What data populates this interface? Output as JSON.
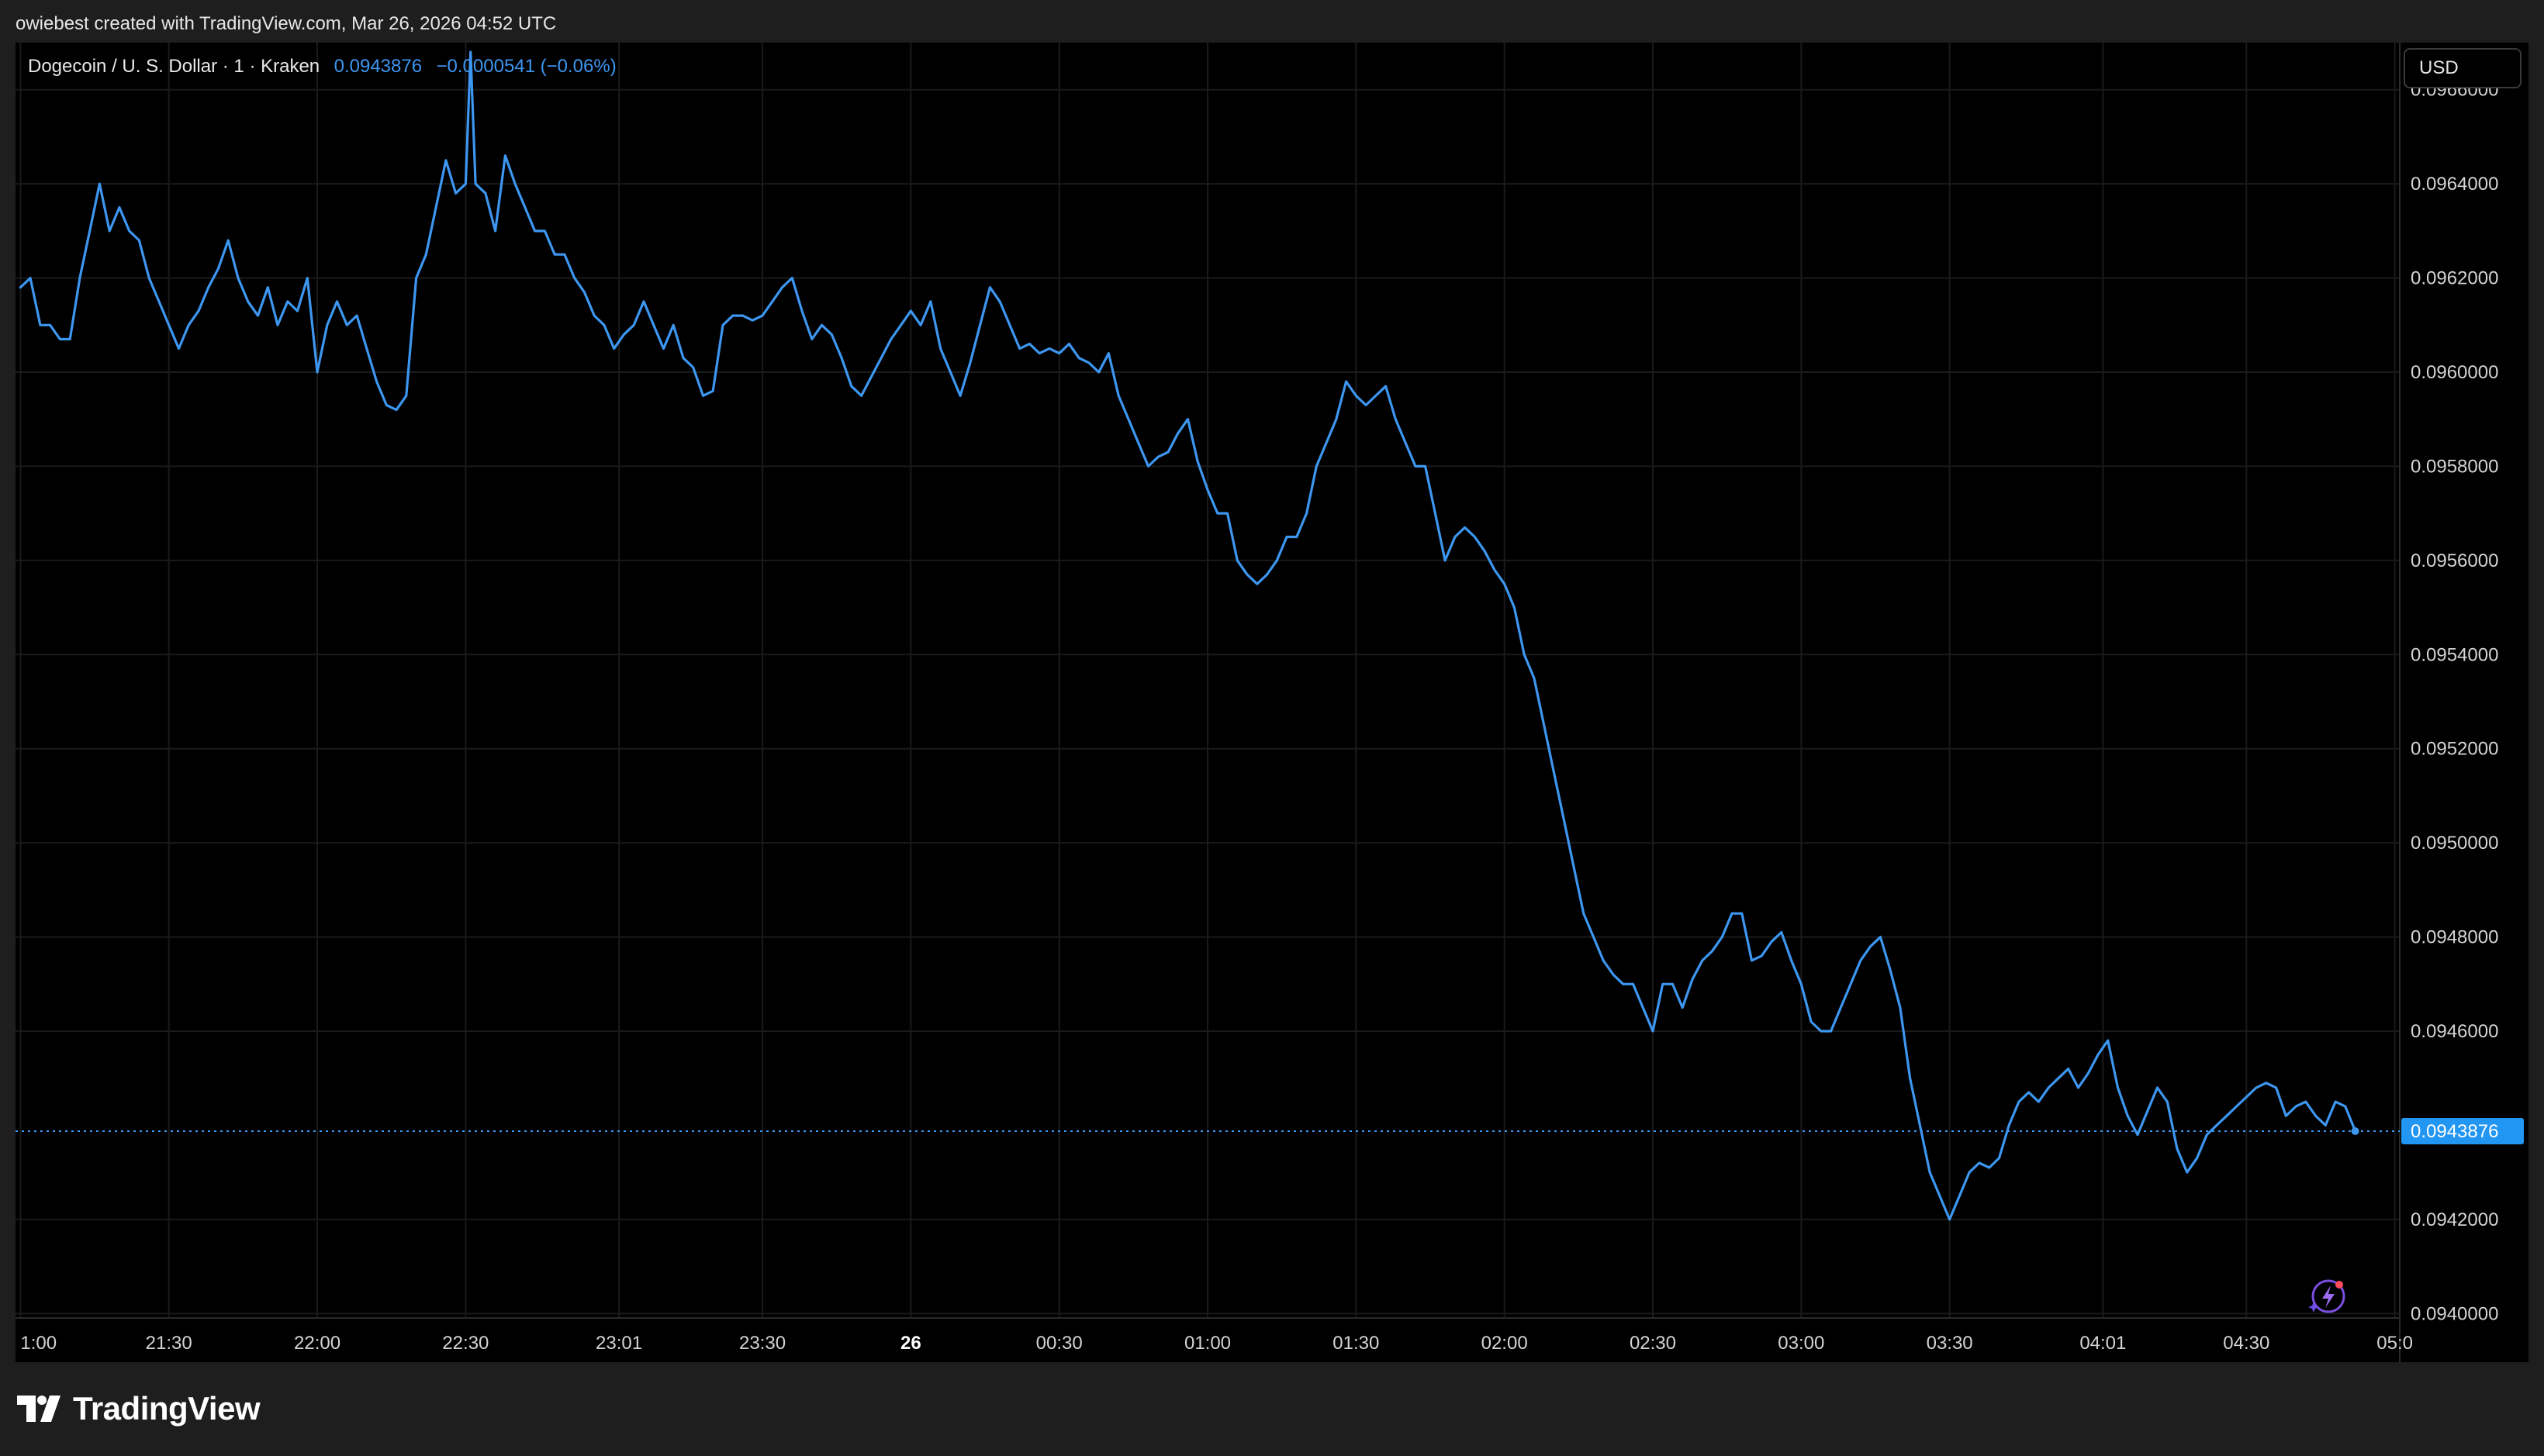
{
  "credit_text": "owiebest created with TradingView.com, Mar 26, 2026 04:52 UTC",
  "brand": "TradingView",
  "currency_label": "USD",
  "legend": {
    "symbol": "Dogecoin / U. S. Dollar · 1 · Kraken",
    "last": "0.0943876",
    "change": "−0.0000541 (−0.06%)"
  },
  "last_price_label": "0.0943876",
  "colors": {
    "line": "#3d96f0",
    "background": "#000000",
    "frame": "#1e1e1e",
    "price_tag": "#2196f3",
    "grid": "#1a1a1a"
  },
  "icons": {
    "brand_logo": "tradingview-logo-icon",
    "snapshot_badge": "sparkle-lightning-icon"
  },
  "chart_data": {
    "type": "line",
    "title": "Dogecoin / U. S. Dollar · 1 · Kraken",
    "xlabel": "",
    "ylabel": "",
    "ylim": [
      0.0939,
      0.0967
    ],
    "yticks": [
      0.0966,
      0.0964,
      0.0962,
      0.096,
      0.0958,
      0.0956,
      0.0954,
      0.0952,
      0.095,
      0.0948,
      0.0946,
      0.0942,
      0.094
    ],
    "ytick_labels": [
      "0.0966000",
      "0.0964000",
      "0.0962000",
      "0.0960000",
      "0.0958000",
      "0.0956000",
      "0.0954000",
      "0.0952000",
      "0.0950000",
      "0.0948000",
      "0.0946000",
      "0.0942000",
      "0.0940000"
    ],
    "xlim": [
      "20:59",
      "05:01"
    ],
    "xticks": [
      {
        "time": "21:00",
        "label": "1:00",
        "bold": false
      },
      {
        "time": "21:30",
        "label": "21:30",
        "bold": false
      },
      {
        "time": "22:00",
        "label": "22:00",
        "bold": false
      },
      {
        "time": "22:30",
        "label": "22:30",
        "bold": false
      },
      {
        "time": "23:01",
        "label": "23:01",
        "bold": false
      },
      {
        "time": "23:30",
        "label": "23:30",
        "bold": false
      },
      {
        "time": "00:00",
        "label": "26",
        "bold": true
      },
      {
        "time": "00:30",
        "label": "00:30",
        "bold": false
      },
      {
        "time": "01:00",
        "label": "01:00",
        "bold": false
      },
      {
        "time": "01:30",
        "label": "01:30",
        "bold": false
      },
      {
        "time": "02:00",
        "label": "02:00",
        "bold": false
      },
      {
        "time": "02:30",
        "label": "02:30",
        "bold": false
      },
      {
        "time": "03:00",
        "label": "03:00",
        "bold": false
      },
      {
        "time": "03:30",
        "label": "03:30",
        "bold": false
      },
      {
        "time": "04:01",
        "label": "04:01",
        "bold": false
      },
      {
        "time": "04:30",
        "label": "04:30",
        "bold": false
      },
      {
        "time": "05:00",
        "label": "05:0",
        "bold": false
      }
    ],
    "grid": true,
    "last_value": 0.0943876,
    "series": [
      {
        "name": "Dogecoin / U. S. Dollar · 1 · Kraken",
        "points": [
          [
            "21:00",
            0.09618
          ],
          [
            "21:02",
            0.0962
          ],
          [
            "21:04",
            0.0961
          ],
          [
            "21:06",
            0.0961
          ],
          [
            "21:08",
            0.09607
          ],
          [
            "21:10",
            0.09607
          ],
          [
            "21:12",
            0.0962
          ],
          [
            "21:14",
            0.0963
          ],
          [
            "21:16",
            0.0964
          ],
          [
            "21:18",
            0.0963
          ],
          [
            "21:20",
            0.09635
          ],
          [
            "21:22",
            0.0963
          ],
          [
            "21:24",
            0.09628
          ],
          [
            "21:26",
            0.0962
          ],
          [
            "21:28",
            0.09615
          ],
          [
            "21:30",
            0.0961
          ],
          [
            "21:32",
            0.09605
          ],
          [
            "21:34",
            0.0961
          ],
          [
            "21:36",
            0.09613
          ],
          [
            "21:38",
            0.09618
          ],
          [
            "21:40",
            0.09622
          ],
          [
            "21:42",
            0.09628
          ],
          [
            "21:44",
            0.0962
          ],
          [
            "21:46",
            0.09615
          ],
          [
            "21:48",
            0.09612
          ],
          [
            "21:50",
            0.09618
          ],
          [
            "21:52",
            0.0961
          ],
          [
            "21:54",
            0.09615
          ],
          [
            "21:56",
            0.09613
          ],
          [
            "21:58",
            0.0962
          ],
          [
            "22:00",
            0.096
          ],
          [
            "22:02",
            0.0961
          ],
          [
            "22:04",
            0.09615
          ],
          [
            "22:06",
            0.0961
          ],
          [
            "22:08",
            0.09612
          ],
          [
            "22:10",
            0.09605
          ],
          [
            "22:12",
            0.09598
          ],
          [
            "22:14",
            0.09593
          ],
          [
            "22:16",
            0.09592
          ],
          [
            "22:18",
            0.09595
          ],
          [
            "22:20",
            0.0962
          ],
          [
            "22:22",
            0.09625
          ],
          [
            "22:24",
            0.09635
          ],
          [
            "22:26",
            0.09645
          ],
          [
            "22:28",
            0.09638
          ],
          [
            "22:30",
            0.0964
          ],
          [
            "22:31",
            0.09668
          ],
          [
            "22:32",
            0.0964
          ],
          [
            "22:34",
            0.09638
          ],
          [
            "22:36",
            0.0963
          ],
          [
            "22:38",
            0.09646
          ],
          [
            "22:40",
            0.0964
          ],
          [
            "22:42",
            0.09635
          ],
          [
            "22:44",
            0.0963
          ],
          [
            "22:46",
            0.0963
          ],
          [
            "22:48",
            0.09625
          ],
          [
            "22:50",
            0.09625
          ],
          [
            "22:52",
            0.0962
          ],
          [
            "22:54",
            0.09617
          ],
          [
            "22:56",
            0.09612
          ],
          [
            "22:58",
            0.0961
          ],
          [
            "23:00",
            0.09605
          ],
          [
            "23:02",
            0.09608
          ],
          [
            "23:04",
            0.0961
          ],
          [
            "23:06",
            0.09615
          ],
          [
            "23:08",
            0.0961
          ],
          [
            "23:10",
            0.09605
          ],
          [
            "23:12",
            0.0961
          ],
          [
            "23:14",
            0.09603
          ],
          [
            "23:16",
            0.09601
          ],
          [
            "23:18",
            0.09595
          ],
          [
            "23:20",
            0.09596
          ],
          [
            "23:22",
            0.0961
          ],
          [
            "23:24",
            0.09612
          ],
          [
            "23:26",
            0.09612
          ],
          [
            "23:28",
            0.09611
          ],
          [
            "23:30",
            0.09612
          ],
          [
            "23:32",
            0.09615
          ],
          [
            "23:34",
            0.09618
          ],
          [
            "23:36",
            0.0962
          ],
          [
            "23:38",
            0.09613
          ],
          [
            "23:40",
            0.09607
          ],
          [
            "23:42",
            0.0961
          ],
          [
            "23:44",
            0.09608
          ],
          [
            "23:46",
            0.09603
          ],
          [
            "23:48",
            0.09597
          ],
          [
            "23:50",
            0.09595
          ],
          [
            "23:52",
            0.09599
          ],
          [
            "23:54",
            0.09603
          ],
          [
            "23:56",
            0.09607
          ],
          [
            "23:58",
            0.0961
          ],
          [
            "00:00",
            0.09613
          ],
          [
            "00:02",
            0.0961
          ],
          [
            "00:04",
            0.09615
          ],
          [
            "00:06",
            0.09605
          ],
          [
            "00:08",
            0.096
          ],
          [
            "00:10",
            0.09595
          ],
          [
            "00:12",
            0.09602
          ],
          [
            "00:14",
            0.0961
          ],
          [
            "00:16",
            0.09618
          ],
          [
            "00:18",
            0.09615
          ],
          [
            "00:20",
            0.0961
          ],
          [
            "00:22",
            0.09605
          ],
          [
            "00:24",
            0.09606
          ],
          [
            "00:26",
            0.09604
          ],
          [
            "00:28",
            0.09605
          ],
          [
            "00:30",
            0.09604
          ],
          [
            "00:32",
            0.09606
          ],
          [
            "00:34",
            0.09603
          ],
          [
            "00:36",
            0.09602
          ],
          [
            "00:38",
            0.096
          ],
          [
            "00:40",
            0.09604
          ],
          [
            "00:42",
            0.09595
          ],
          [
            "00:44",
            0.0959
          ],
          [
            "00:46",
            0.09585
          ],
          [
            "00:48",
            0.0958
          ],
          [
            "00:50",
            0.09582
          ],
          [
            "00:52",
            0.09583
          ],
          [
            "00:54",
            0.09587
          ],
          [
            "00:56",
            0.0959
          ],
          [
            "00:58",
            0.09581
          ],
          [
            "01:00",
            0.09575
          ],
          [
            "01:02",
            0.0957
          ],
          [
            "01:04",
            0.0957
          ],
          [
            "01:06",
            0.0956
          ],
          [
            "01:08",
            0.09557
          ],
          [
            "01:10",
            0.09555
          ],
          [
            "01:12",
            0.09557
          ],
          [
            "01:14",
            0.0956
          ],
          [
            "01:16",
            0.09565
          ],
          [
            "01:18",
            0.09565
          ],
          [
            "01:20",
            0.0957
          ],
          [
            "01:22",
            0.0958
          ],
          [
            "01:24",
            0.09585
          ],
          [
            "01:26",
            0.0959
          ],
          [
            "01:28",
            0.09598
          ],
          [
            "01:30",
            0.09595
          ],
          [
            "01:32",
            0.09593
          ],
          [
            "01:34",
            0.09595
          ],
          [
            "01:36",
            0.09597
          ],
          [
            "01:38",
            0.0959
          ],
          [
            "01:40",
            0.09585
          ],
          [
            "01:42",
            0.0958
          ],
          [
            "01:44",
            0.0958
          ],
          [
            "01:46",
            0.0957
          ],
          [
            "01:48",
            0.0956
          ],
          [
            "01:50",
            0.09565
          ],
          [
            "01:52",
            0.09567
          ],
          [
            "01:54",
            0.09565
          ],
          [
            "01:56",
            0.09562
          ],
          [
            "01:58",
            0.09558
          ],
          [
            "02:00",
            0.09555
          ],
          [
            "02:02",
            0.0955
          ],
          [
            "02:04",
            0.0954
          ],
          [
            "02:06",
            0.09535
          ],
          [
            "02:08",
            0.09525
          ],
          [
            "02:10",
            0.09515
          ],
          [
            "02:12",
            0.09505
          ],
          [
            "02:14",
            0.09495
          ],
          [
            "02:16",
            0.09485
          ],
          [
            "02:18",
            0.0948
          ],
          [
            "02:20",
            0.09475
          ],
          [
            "02:22",
            0.09472
          ],
          [
            "02:24",
            0.0947
          ],
          [
            "02:26",
            0.0947
          ],
          [
            "02:28",
            0.09465
          ],
          [
            "02:30",
            0.0946
          ],
          [
            "02:32",
            0.0947
          ],
          [
            "02:34",
            0.0947
          ],
          [
            "02:36",
            0.09465
          ],
          [
            "02:38",
            0.09471
          ],
          [
            "02:40",
            0.09475
          ],
          [
            "02:42",
            0.09477
          ],
          [
            "02:44",
            0.0948
          ],
          [
            "02:46",
            0.09485
          ],
          [
            "02:48",
            0.09485
          ],
          [
            "02:50",
            0.09475
          ],
          [
            "02:52",
            0.09476
          ],
          [
            "02:54",
            0.09479
          ],
          [
            "02:56",
            0.09481
          ],
          [
            "02:58",
            0.09475
          ],
          [
            "03:00",
            0.0947
          ],
          [
            "03:02",
            0.09462
          ],
          [
            "03:04",
            0.0946
          ],
          [
            "03:06",
            0.0946
          ],
          [
            "03:08",
            0.09465
          ],
          [
            "03:10",
            0.0947
          ],
          [
            "03:12",
            0.09475
          ],
          [
            "03:14",
            0.09478
          ],
          [
            "03:16",
            0.0948
          ],
          [
            "03:18",
            0.09473
          ],
          [
            "03:20",
            0.09465
          ],
          [
            "03:22",
            0.0945
          ],
          [
            "03:24",
            0.0944
          ],
          [
            "03:26",
            0.0943
          ],
          [
            "03:28",
            0.09425
          ],
          [
            "03:30",
            0.0942
          ],
          [
            "03:32",
            0.09425
          ],
          [
            "03:34",
            0.0943
          ],
          [
            "03:36",
            0.09432
          ],
          [
            "03:38",
            0.09431
          ],
          [
            "03:40",
            0.09433
          ],
          [
            "03:42",
            0.0944
          ],
          [
            "03:44",
            0.09445
          ],
          [
            "03:46",
            0.09447
          ],
          [
            "03:48",
            0.09445
          ],
          [
            "03:50",
            0.09448
          ],
          [
            "03:52",
            0.0945
          ],
          [
            "03:54",
            0.09452
          ],
          [
            "03:56",
            0.09448
          ],
          [
            "03:58",
            0.09451
          ],
          [
            "04:00",
            0.09455
          ],
          [
            "04:02",
            0.09458
          ],
          [
            "04:04",
            0.09448
          ],
          [
            "04:06",
            0.09442
          ],
          [
            "04:08",
            0.09438
          ],
          [
            "04:10",
            0.09443
          ],
          [
            "04:12",
            0.09448
          ],
          [
            "04:14",
            0.09445
          ],
          [
            "04:16",
            0.09435
          ],
          [
            "04:18",
            0.0943
          ],
          [
            "04:20",
            0.09433
          ],
          [
            "04:22",
            0.09438
          ],
          [
            "04:24",
            0.0944
          ],
          [
            "04:26",
            0.09442
          ],
          [
            "04:28",
            0.09444
          ],
          [
            "04:30",
            0.09446
          ],
          [
            "04:32",
            0.09448
          ],
          [
            "04:34",
            0.09449
          ],
          [
            "04:36",
            0.09448
          ],
          [
            "04:38",
            0.09442
          ],
          [
            "04:40",
            0.09444
          ],
          [
            "04:42",
            0.09445
          ],
          [
            "04:44",
            0.09442
          ],
          [
            "04:46",
            0.0944
          ],
          [
            "04:48",
            0.09445
          ],
          [
            "04:50",
            0.09444
          ],
          [
            "04:52",
            0.094388
          ]
        ]
      }
    ]
  }
}
